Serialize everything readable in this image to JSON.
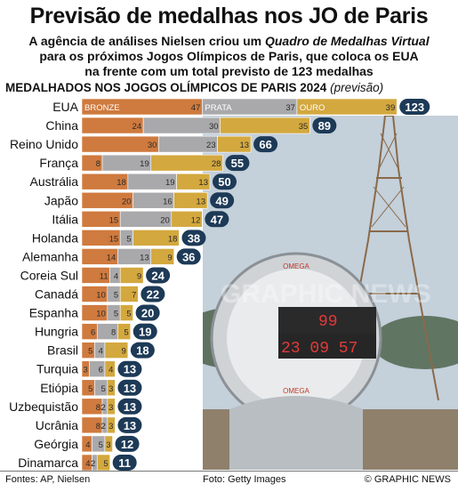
{
  "header": {
    "title": "Previsão de medalhas nos JO de Paris",
    "subtitle_l1_a": "A agência de análises Nielsen criou um ",
    "subtitle_l1_b": "Quadro de Medalhas Virtual",
    "subtitle_l2": "para os próximos Jogos Olímpicos de Paris, que coloca os EUA",
    "subtitle_l3": "na frente com um total previsto de 123 medalhas"
  },
  "chart_heading": {
    "main": "MEDALHADOS NOS JOGOS OLÍMPICOS DE PARIS 2024",
    "note": "(previsão)"
  },
  "footer": {
    "sources": "Fontes: AP, Nielsen",
    "credit": "Foto: Getty Images",
    "brand": "© GRAPHIC NEWS"
  },
  "colors": {
    "bronze": "#cf7a3e",
    "silver": "#a9a9ab",
    "gold": "#d3a83e",
    "total_badge": "#1d3a57"
  },
  "chart_data": {
    "type": "bar",
    "stacked": true,
    "orientation": "horizontal",
    "title": "MEDALHADOS NOS JOGOS OLÍMPICOS DE PARIS 2024",
    "xlabel": "",
    "ylabel": "",
    "categories": [
      "EUA",
      "China",
      "Reino Unido",
      "França",
      "Austrália",
      "Japão",
      "Itália",
      "Holanda",
      "Alemanha",
      "Coreia Sul",
      "Canadá",
      "Espanha",
      "Hungria",
      "Brasil",
      "Turquia",
      "Etiópia",
      "Uzbequistão",
      "Ucrânia",
      "Geórgia",
      "Dinamarca"
    ],
    "series": [
      {
        "name": "BRONZE",
        "values": [
          47,
          24,
          30,
          8,
          18,
          20,
          15,
          15,
          14,
          11,
          10,
          10,
          6,
          5,
          3,
          5,
          8,
          8,
          4,
          4
        ]
      },
      {
        "name": "PRATA",
        "values": [
          37,
          30,
          23,
          19,
          19,
          16,
          20,
          5,
          13,
          4,
          5,
          5,
          8,
          4,
          6,
          5,
          2,
          2,
          5,
          2
        ]
      },
      {
        "name": "OURO",
        "values": [
          39,
          35,
          13,
          28,
          13,
          13,
          12,
          18,
          9,
          9,
          7,
          5,
          5,
          9,
          4,
          3,
          3,
          3,
          3,
          5
        ]
      }
    ],
    "totals": [
      123,
      89,
      66,
      55,
      50,
      49,
      47,
      38,
      36,
      24,
      22,
      20,
      19,
      18,
      13,
      13,
      13,
      13,
      12,
      11
    ]
  }
}
